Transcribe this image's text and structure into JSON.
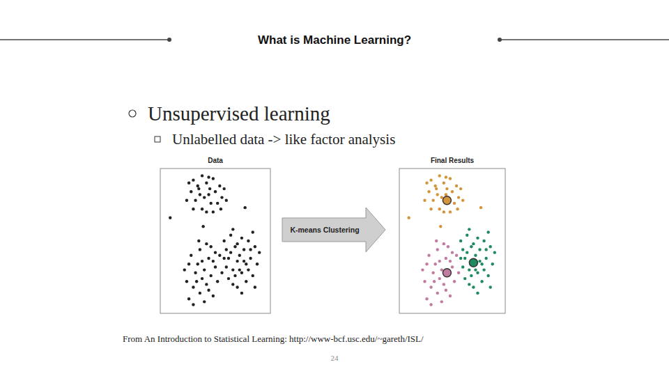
{
  "slide": {
    "title": "What is Machine Learning?",
    "bullet": "Unsupervised learning",
    "sub_bullet": "Unlabelled data -> like factor analysis",
    "arrow_label": "K-means Clustering",
    "source": "From An Introduction to Statistical Learning: http://www-bcf.usc.edu/~gareth/ISL/",
    "page_number": 24
  },
  "chart_data": [
    {
      "type": "scatter",
      "title": "Data",
      "color": "#222222",
      "xlim": [
        0,
        100
      ],
      "ylim": [
        0,
        100
      ],
      "tick_labels": false,
      "x": [
        30,
        34,
        38,
        42,
        45,
        48,
        36,
        40,
        44,
        50,
        54,
        56,
        28,
        32,
        46,
        52,
        38,
        42,
        58,
        30,
        48,
        26,
        60,
        35,
        44,
        9,
        77,
        39,
        55,
        24,
        24,
        26,
        30,
        32,
        34,
        36,
        38,
        40,
        42,
        44,
        46,
        48,
        50,
        52,
        54,
        28,
        36,
        40,
        46,
        22,
        30,
        44,
        38,
        50,
        56,
        33,
        42,
        48,
        26,
        35,
        58,
        60,
        62,
        64,
        66,
        68,
        70,
        72,
        74,
        76,
        78,
        80,
        82,
        84,
        86,
        88,
        90,
        62,
        66,
        70,
        74,
        78,
        60,
        72,
        76,
        80,
        64,
        68,
        82,
        86,
        58,
        70,
        74,
        66,
        84
      ],
      "y": [
        92,
        88,
        95,
        90,
        86,
        93,
        82,
        80,
        82,
        84,
        88,
        80,
        84,
        78,
        76,
        76,
        72,
        70,
        86,
        72,
        70,
        90,
        78,
        86,
        94,
        66,
        73,
        60,
        72,
        78,
        22,
        10,
        18,
        28,
        34,
        14,
        24,
        30,
        20,
        38,
        26,
        12,
        32,
        22,
        40,
        40,
        44,
        8,
        46,
        30,
        6,
        16,
        36,
        42,
        28,
        22,
        48,
        36,
        34,
        50,
        50,
        44,
        38,
        54,
        30,
        46,
        36,
        40,
        28,
        44,
        34,
        50,
        38,
        26,
        46,
        34,
        42,
        24,
        58,
        18,
        52,
        22,
        32,
        30,
        36,
        30,
        42,
        26,
        44,
        18,
        38,
        48,
        14,
        20,
        56
      ]
    },
    {
      "type": "scatter",
      "title": "Final Results",
      "xlim": [
        0,
        100
      ],
      "ylim": [
        0,
        100
      ],
      "tick_labels": false,
      "series": [
        {
          "color": "#d4953a",
          "marker": "dot",
          "x": [
            30,
            34,
            38,
            42,
            45,
            48,
            36,
            40,
            44,
            50,
            54,
            56,
            28,
            32,
            46,
            52,
            38,
            42,
            58,
            30,
            48,
            26,
            60,
            35,
            44,
            9,
            77,
            39,
            55,
            24
          ],
          "y": [
            92,
            88,
            95,
            90,
            86,
            93,
            82,
            80,
            82,
            84,
            88,
            80,
            84,
            78,
            76,
            76,
            72,
            70,
            86,
            72,
            70,
            90,
            78,
            86,
            94,
            66,
            73,
            60,
            72,
            78
          ]
        },
        {
          "color": "#c27ba0",
          "marker": "dot",
          "x": [
            24,
            26,
            30,
            32,
            34,
            36,
            38,
            40,
            42,
            44,
            46,
            48,
            50,
            52,
            54,
            28,
            36,
            40,
            46,
            22,
            30,
            44,
            38,
            50,
            56,
            33,
            42,
            48,
            26,
            35
          ],
          "y": [
            22,
            10,
            18,
            28,
            34,
            14,
            24,
            30,
            20,
            38,
            26,
            12,
            32,
            22,
            40,
            40,
            44,
            8,
            46,
            30,
            6,
            16,
            36,
            42,
            28,
            22,
            48,
            36,
            34,
            50
          ]
        },
        {
          "color": "#1f8a5f",
          "marker": "dot",
          "x": [
            58,
            60,
            62,
            64,
            66,
            68,
            70,
            72,
            74,
            76,
            78,
            80,
            82,
            84,
            86,
            88,
            90,
            62,
            66,
            70,
            74,
            78,
            60,
            72,
            76,
            80,
            64,
            68,
            82,
            86,
            58,
            70,
            74,
            66,
            84
          ],
          "y": [
            50,
            44,
            38,
            54,
            30,
            46,
            36,
            40,
            28,
            44,
            34,
            50,
            38,
            26,
            46,
            34,
            42,
            24,
            58,
            18,
            52,
            22,
            32,
            30,
            36,
            30,
            42,
            26,
            44,
            18,
            38,
            48,
            14,
            20,
            56
          ]
        },
        {
          "marker": "centroid",
          "colors": [
            "#d4953a",
            "#c27ba0",
            "#1f8a5f"
          ],
          "x": [
            45,
            45,
            70
          ],
          "y": [
            78,
            28,
            35
          ]
        }
      ]
    }
  ]
}
